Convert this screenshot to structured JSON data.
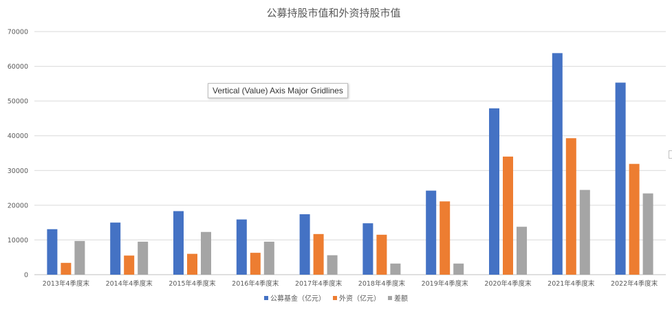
{
  "chart_data": {
    "type": "bar",
    "title": "公募持股市值和外资持股市值",
    "categories": [
      "2013年4季度末",
      "2014年4季度末",
      "2015年4季度末",
      "2016年4季度末",
      "2017年4季度末",
      "2018年4季度末",
      "2019年4季度末",
      "2020年4季度末",
      "2021年4季度末",
      "2022年4季度末"
    ],
    "series": [
      {
        "name": "公募基金（亿元）",
        "color": "#4472c4",
        "values": [
          13100,
          15000,
          18300,
          15900,
          17400,
          14800,
          24200,
          47900,
          63800,
          55300
        ]
      },
      {
        "name": "外资（亿元）",
        "color": "#ed7d31",
        "values": [
          3400,
          5500,
          6000,
          6300,
          11700,
          11500,
          21100,
          34000,
          39300,
          31900
        ]
      },
      {
        "name": "差额",
        "color": "#a5a5a5",
        "values": [
          9700,
          9500,
          12300,
          9500,
          5600,
          3200,
          3200,
          13800,
          24400,
          23400
        ]
      }
    ],
    "yticks": [
      0,
      10000,
      20000,
      30000,
      40000,
      50000,
      60000,
      70000
    ],
    "ylim": [
      0,
      70000
    ],
    "grid": true,
    "legend_position": "bottom",
    "xlabel": "",
    "ylabel": ""
  },
  "tooltip": "Vertical (Value) Axis Major Gridlines"
}
